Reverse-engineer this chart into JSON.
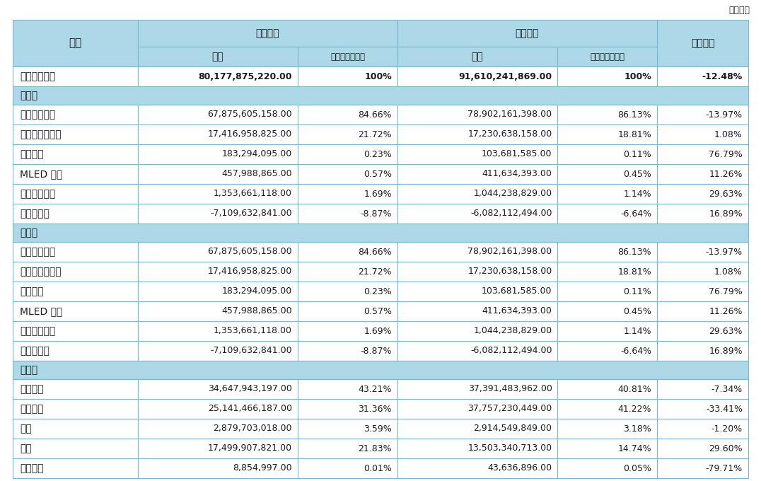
{
  "unit_text": "单位：元",
  "header": {
    "col0": "项目",
    "col1_group": "本报告期",
    "col2": "金额",
    "col3": "占营业收入比重",
    "col4_group": "上年同期",
    "col5": "金额",
    "col6": "占营业收入比重",
    "col7": "同比增减"
  },
  "rows": [
    {
      "type": "data_bold",
      "col0": "营业收入合计",
      "col1": "80,177,875,220.00",
      "col2": "100%",
      "col3": "91,610,241,869.00",
      "col4": "100%",
      "col5": "-12.48%"
    },
    {
      "type": "section",
      "col0": "分行业"
    },
    {
      "type": "data",
      "col0": "显示器件业务",
      "col1": "67,875,605,158.00",
      "col2": "84.66%",
      "col3": "78,902,161,398.00",
      "col4": "86.13%",
      "col5": "-13.97%"
    },
    {
      "type": "data",
      "col0": "物联网创新业务",
      "col1": "17,416,958,825.00",
      "col2": "21.72%",
      "col3": "17,230,638,158.00",
      "col4": "18.81%",
      "col5": "1.08%"
    },
    {
      "type": "data",
      "col0": "传感业务",
      "col1": "183,294,095.00",
      "col2": "0.23%",
      "col3": "103,681,585.00",
      "col4": "0.11%",
      "col5": "76.79%"
    },
    {
      "type": "data",
      "col0": "MLED 业务",
      "col1": "457,988,865.00",
      "col2": "0.57%",
      "col3": "411,634,393.00",
      "col4": "0.45%",
      "col5": "11.26%"
    },
    {
      "type": "data",
      "col0": "智慧医工业务",
      "col1": "1,353,661,118.00",
      "col2": "1.69%",
      "col3": "1,044,238,829.00",
      "col4": "1.14%",
      "col5": "29.63%"
    },
    {
      "type": "data",
      "col0": "其他及抵销",
      "col1": "-7,109,632,841.00",
      "col2": "-8.87%",
      "col3": "-6,082,112,494.00",
      "col4": "-6.64%",
      "col5": "16.89%"
    },
    {
      "type": "section",
      "col0": "分产品"
    },
    {
      "type": "data",
      "col0": "显示器件业务",
      "col1": "67,875,605,158.00",
      "col2": "84.66%",
      "col3": "78,902,161,398.00",
      "col4": "86.13%",
      "col5": "-13.97%"
    },
    {
      "type": "data",
      "col0": "物联网创新业务",
      "col1": "17,416,958,825.00",
      "col2": "21.72%",
      "col3": "17,230,638,158.00",
      "col4": "18.81%",
      "col5": "1.08%"
    },
    {
      "type": "data",
      "col0": "传感业务",
      "col1": "183,294,095.00",
      "col2": "0.23%",
      "col3": "103,681,585.00",
      "col4": "0.11%",
      "col5": "76.79%"
    },
    {
      "type": "data",
      "col0": "MLED 业务",
      "col1": "457,988,865.00",
      "col2": "0.57%",
      "col3": "411,634,393.00",
      "col4": "0.45%",
      "col5": "11.26%"
    },
    {
      "type": "data",
      "col0": "智慧医工业务",
      "col1": "1,353,661,118.00",
      "col2": "1.69%",
      "col3": "1,044,238,829.00",
      "col4": "1.14%",
      "col5": "29.63%"
    },
    {
      "type": "data",
      "col0": "其他及抵销",
      "col1": "-7,109,632,841.00",
      "col2": "-8.87%",
      "col3": "-6,082,112,494.00",
      "col4": "-6.64%",
      "col5": "16.89%"
    },
    {
      "type": "section",
      "col0": "分地区"
    },
    {
      "type": "data",
      "col0": "中国大陆",
      "col1": "34,647,943,197.00",
      "col2": "43.21%",
      "col3": "37,391,483,962.00",
      "col4": "40.81%",
      "col5": "-7.34%"
    },
    {
      "type": "data",
      "col0": "亚洲其他",
      "col1": "25,141,466,187.00",
      "col2": "31.36%",
      "col3": "37,757,230,449.00",
      "col4": "41.22%",
      "col5": "-33.41%"
    },
    {
      "type": "data",
      "col0": "欧洲",
      "col1": "2,879,703,018.00",
      "col2": "3.59%",
      "col3": "2,914,549,849.00",
      "col4": "3.18%",
      "col5": "-1.20%"
    },
    {
      "type": "data",
      "col0": "美洲",
      "col1": "17,499,907,821.00",
      "col2": "21.83%",
      "col3": "13,503,340,713.00",
      "col4": "14.74%",
      "col5": "29.60%"
    },
    {
      "type": "data",
      "col0": "其他地区",
      "col1": "8,854,997.00",
      "col2": "0.01%",
      "col3": "43,636,896.00",
      "col4": "0.05%",
      "col5": "-79.71%"
    }
  ],
  "colors": {
    "header_bg": "#ADD8E8",
    "section_bg": "#ADD8E8",
    "data_bg": "#FFFFFF",
    "border": "#7BB8CC",
    "text": "#1A1A1A",
    "unit_text": "#333333"
  }
}
